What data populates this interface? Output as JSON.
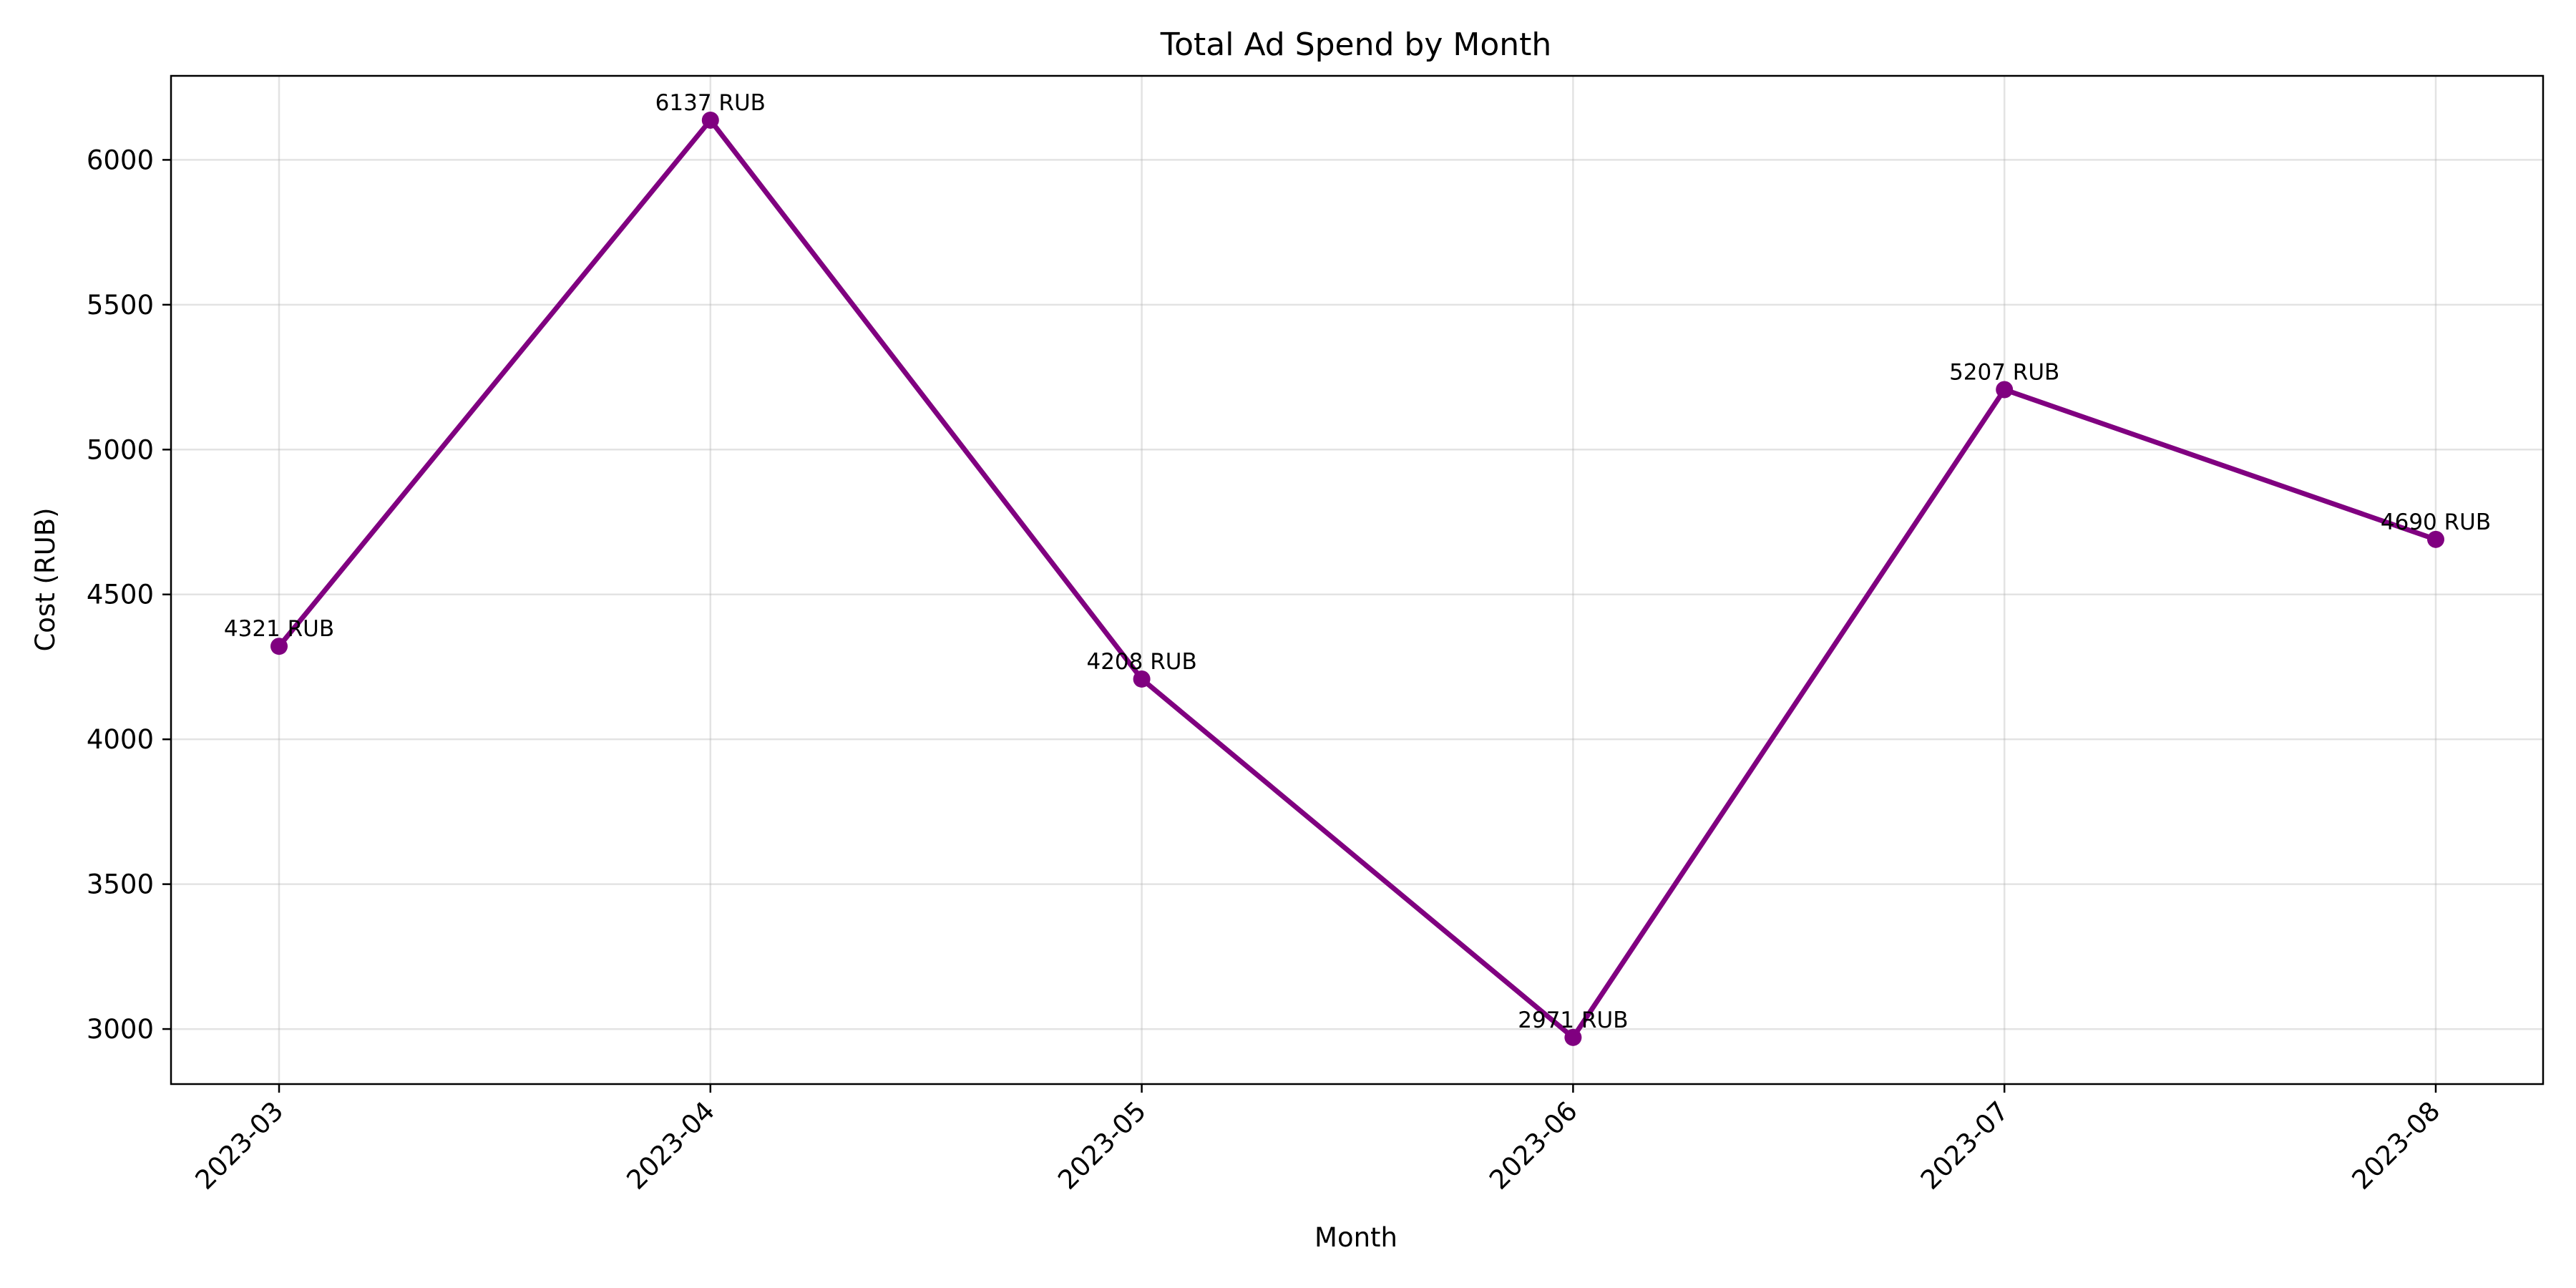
{
  "chart_data": {
    "type": "line",
    "title": "Total Ad Spend by Month",
    "xlabel": "Month",
    "ylabel": "Cost (RUB)",
    "categories": [
      "2023-03",
      "2023-04",
      "2023-05",
      "2023-06",
      "2023-07",
      "2023-08"
    ],
    "series": [
      {
        "values": [
          4321,
          6137,
          4208,
          2971,
          5207,
          4690
        ],
        "color": "#800080"
      }
    ],
    "data_labels": [
      "4321 RUB",
      "6137 RUB",
      "4208 RUB",
      "2971 RUB",
      "5207 RUB",
      "4690 RUB"
    ],
    "ylim": [
      2810,
      6290
    ],
    "yticks": [
      3000,
      3500,
      4000,
      4500,
      5000,
      5500,
      6000
    ],
    "grid": true,
    "legend": "none"
  }
}
